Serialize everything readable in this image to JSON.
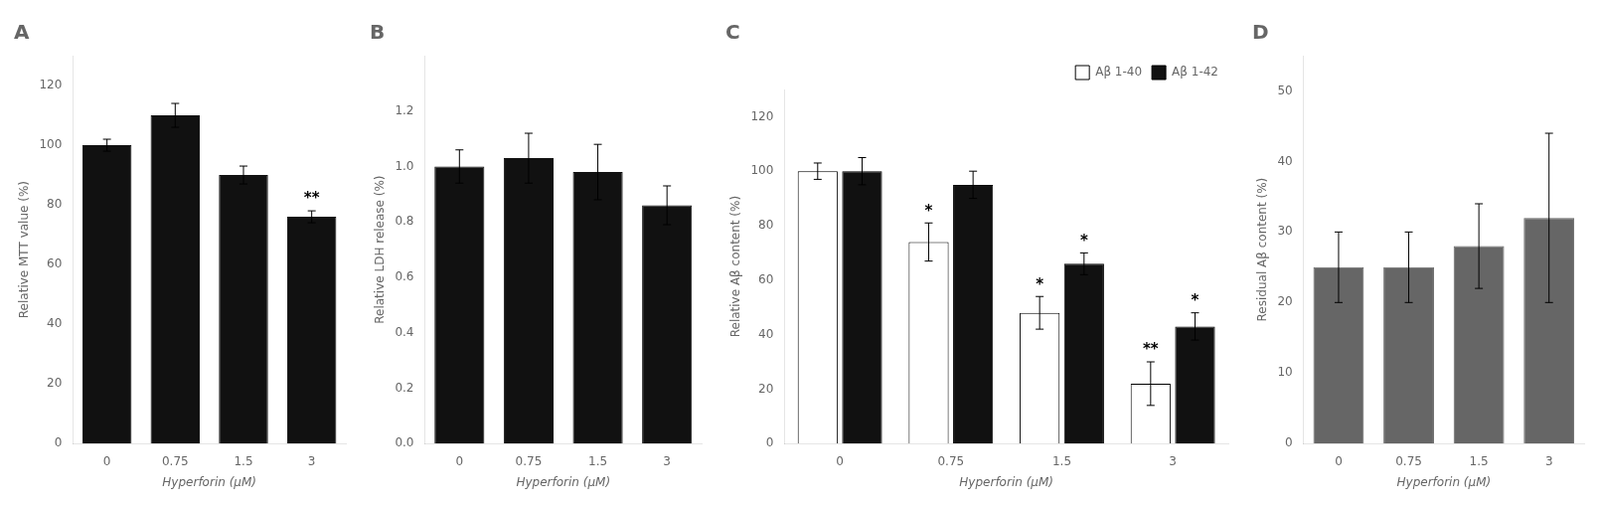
{
  "chart_data": [
    {
      "type": "bar",
      "title": "A",
      "categories": [
        "0",
        "0.75",
        "1.5",
        "3"
      ],
      "values": [
        100,
        110,
        90,
        76
      ],
      "errors": [
        2,
        4,
        3,
        2
      ],
      "color": "#111111",
      "ylabel": "Relative MTT value (%)",
      "xlabel": "Hyperforin (μM)",
      "ylim": [
        0,
        130
      ],
      "yticks": [
        0,
        20,
        40,
        60,
        80,
        100,
        120
      ],
      "grid": false,
      "annotations": [
        {
          "x": "3",
          "text": "**"
        }
      ]
    },
    {
      "type": "bar",
      "title": "B",
      "categories": [
        "0",
        "0.75",
        "1.5",
        "3"
      ],
      "values": [
        1.0,
        1.03,
        0.98,
        0.86
      ],
      "errors": [
        0.06,
        0.09,
        0.1,
        0.07
      ],
      "color": "#111111",
      "ylabel": "Relative LDH release (%)",
      "xlabel": "Hyperforin (μM)",
      "ylim": [
        0,
        1.4
      ],
      "yticks": [
        {
          "value": 0,
          "label": "0.0"
        },
        0.2,
        0.4,
        0.6,
        0.8,
        {
          "value": 1.0,
          "label": "1.0"
        },
        1.2
      ],
      "grid": false
    },
    {
      "type": "bar",
      "title": "C",
      "categories": [
        "0",
        "0.75",
        "1.5",
        "3"
      ],
      "series": [
        {
          "name": "Aβ 1-40",
          "color": "#ffffff",
          "values": [
            100,
            74,
            48,
            22
          ],
          "errors": [
            3,
            7,
            6,
            8
          ]
        },
        {
          "name": "Aβ 1-42",
          "color": "#111111",
          "values": [
            100,
            95,
            66,
            43
          ],
          "errors": [
            5,
            5,
            4,
            5
          ]
        }
      ],
      "ylabel": "Relative Aβ content (%)",
      "xlabel": "Hyperforin (μM)",
      "ylim": [
        0,
        130
      ],
      "yticks": [
        0,
        20,
        40,
        60,
        80,
        100,
        120
      ],
      "grid": false,
      "legend": "upper right",
      "annotations": [
        {
          "x": "0.75",
          "series": "Aβ 1-40",
          "text": "*"
        },
        {
          "x": "1.5",
          "series": "Aβ 1-40",
          "text": "*"
        },
        {
          "x": "3",
          "series": "Aβ 1-40",
          "text": "**"
        },
        {
          "x": "1.5",
          "series": "Aβ 1-42",
          "text": "*"
        },
        {
          "x": "3",
          "series": "Aβ 1-42",
          "text": "*"
        }
      ]
    },
    {
      "type": "bar",
      "title": "D",
      "categories": [
        "0",
        "0.75",
        "1.5",
        "3"
      ],
      "values": [
        25,
        25,
        28,
        32
      ],
      "errors": [
        5,
        5,
        6,
        12
      ],
      "color": "#666666",
      "ylabel": "Residual Aβ content (%)",
      "xlabel": "Hyperforin (μM)",
      "ylim": [
        0,
        55
      ],
      "yticks": [
        0,
        10,
        20,
        30,
        40,
        50
      ],
      "grid": false
    }
  ]
}
